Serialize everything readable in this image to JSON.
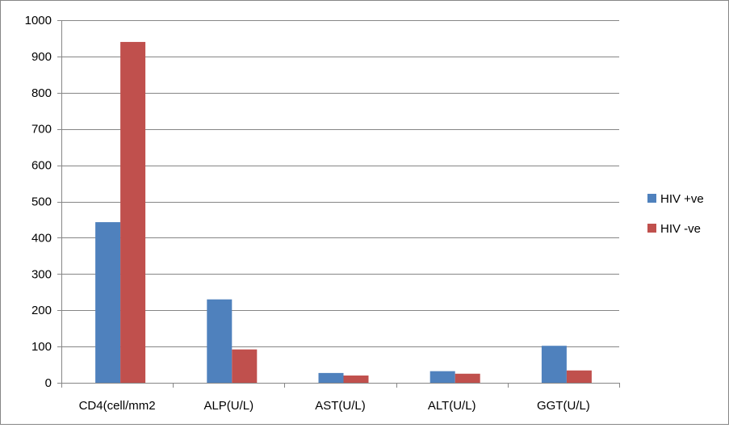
{
  "chart_data": {
    "type": "bar",
    "title": "",
    "xlabel": "",
    "ylabel": "",
    "categories": [
      "CD4(cell/mm2",
      "ALP(U/L)",
      "AST(U/L)",
      "ALT(U/L)",
      "GGT(U/L)"
    ],
    "series": [
      {
        "name": "HIV +ve",
        "color": "#4F81BD",
        "values": [
          443,
          230,
          27,
          32,
          102
        ]
      },
      {
        "name": "HIV -ve",
        "color": "#C0504D",
        "values": [
          940,
          92,
          20,
          25,
          34
        ]
      }
    ],
    "ylim": [
      0,
      1000
    ],
    "yticks": [
      0,
      100,
      200,
      300,
      400,
      500,
      600,
      700,
      800,
      900,
      1000
    ],
    "grid": true,
    "legend_position": "right"
  }
}
